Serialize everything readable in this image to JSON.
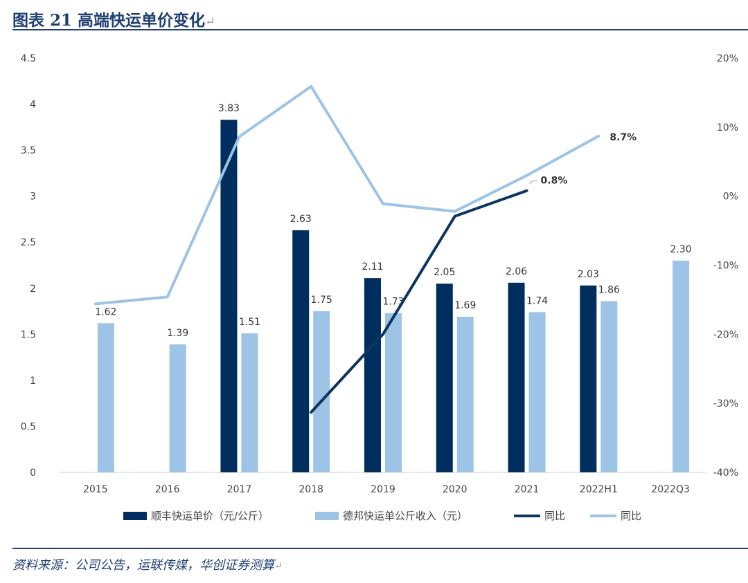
{
  "header": {
    "title": "图表 21    高端快运单价变化",
    "title_mark": "↵"
  },
  "footer": {
    "source": "资料来源：公司公告，运联传媒，华创证券测算",
    "source_mark": "↵"
  },
  "colors": {
    "sf": "#002f5f",
    "deppon": "#9dc3e6",
    "sf_yoy": "#0d3560",
    "deppon_yoy": "#9dc3e6"
  },
  "chart_data": {
    "type": "bar",
    "categories": [
      "2015",
      "2016",
      "2017",
      "2018",
      "2019",
      "2020",
      "2021",
      "2022H1",
      "2022Q3"
    ],
    "y_left": {
      "ticks": [
        "0",
        "0.5",
        "1",
        "1.5",
        "2",
        "2.5",
        "3",
        "3.5",
        "4",
        "4.5"
      ],
      "lim": [
        0,
        4.5
      ]
    },
    "y_right": {
      "ticks": [
        "-40%",
        "-30%",
        "-20%",
        "-10%",
        "0%",
        "10%",
        "20%"
      ],
      "lim": [
        -40,
        20
      ]
    },
    "series": [
      {
        "name": "顺丰快运单价（元/公斤）",
        "kind": "bar",
        "axis": "left",
        "color": "#002f5f",
        "values": [
          null,
          null,
          3.83,
          2.63,
          2.11,
          2.05,
          2.06,
          2.03,
          null
        ],
        "labels": [
          "",
          "",
          "3.83",
          "2.63",
          "2.11",
          "2.05",
          "2.06",
          "2.03",
          ""
        ]
      },
      {
        "name": "德邦快运单公斤收入（元）",
        "kind": "bar",
        "axis": "left",
        "color": "#9dc3e6",
        "values": [
          1.62,
          1.39,
          1.51,
          1.75,
          1.73,
          1.69,
          1.74,
          1.86,
          2.3
        ],
        "labels": [
          "1.62",
          "1.39",
          "1.51",
          "1.75",
          "1.73",
          "1.69",
          "1.74",
          "1.86",
          "2.30"
        ]
      },
      {
        "name": "同比",
        "kind": "line",
        "axis": "right",
        "color": "#0d3560",
        "values": [
          null,
          null,
          null,
          -31.3,
          -20.0,
          -2.9,
          0.8,
          null,
          null
        ],
        "end_label": "0.8%"
      },
      {
        "name": "同比",
        "kind": "line",
        "axis": "right",
        "color": "#9dc3e6",
        "values": [
          -15.6,
          -14.6,
          8.6,
          15.9,
          -1.1,
          -2.2,
          3.0,
          8.7,
          null
        ],
        "end_label": "8.7%"
      }
    ]
  }
}
